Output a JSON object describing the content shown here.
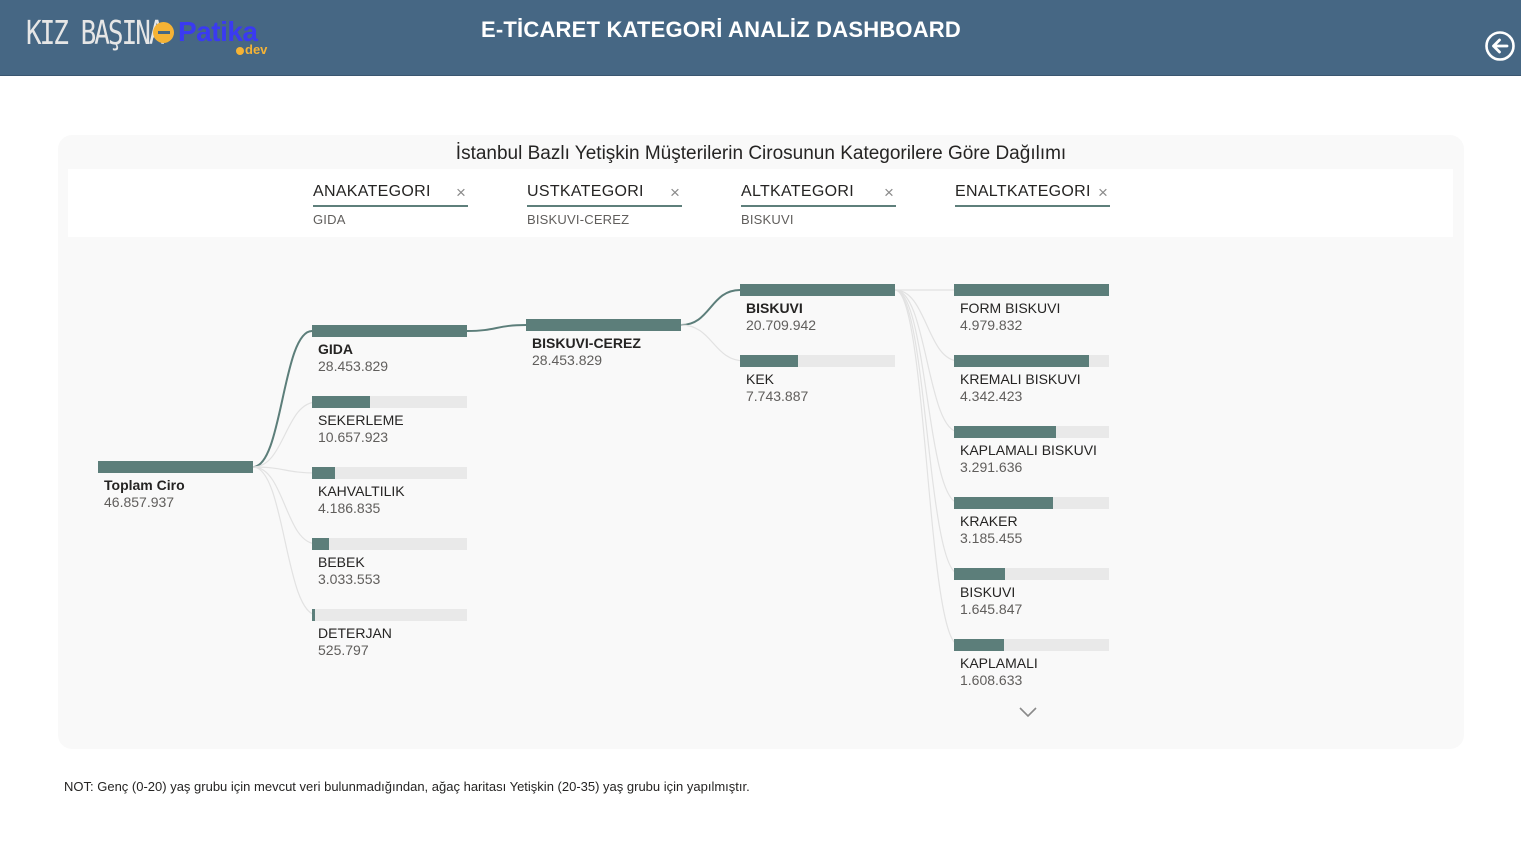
{
  "header": {
    "logo_kiz": "KIZ BAŞINA",
    "logo_patika": "Patika",
    "logo_dev": "dev",
    "title": "E-TİCARET KATEGORİ ANALİZ DASHBOARD",
    "back_icon": "back-arrow-icon"
  },
  "panel": {
    "title": "İstanbul Bazlı Yetişkin Müşterilerin Cirosunun Kategorilere Göre Dağılımı",
    "filters": [
      {
        "label": "ANAKATEGORI",
        "value": "GIDA"
      },
      {
        "label": "USTKATEGORI",
        "value": "BISKUVI-CEREZ"
      },
      {
        "label": "ALTKATEGORI",
        "value": "BISKUVI"
      },
      {
        "label": "ENALTKATEGORI",
        "value": ""
      }
    ],
    "clear_symbol": "×"
  },
  "chart_data": {
    "type": "decomposition-tree",
    "root": {
      "name": "Toplam Ciro",
      "value": 46857937,
      "label": "46.857.937"
    },
    "levels": [
      {
        "field": "ANAKATEGORI",
        "selected": "GIDA",
        "nodes": [
          {
            "name": "GIDA",
            "value": 28453829,
            "label": "28.453.829"
          },
          {
            "name": "SEKERLEME",
            "value": 10657923,
            "label": "10.657.923"
          },
          {
            "name": "KAHVALTILIK",
            "value": 4186835,
            "label": "4.186.835"
          },
          {
            "name": "BEBEK",
            "value": 3033553,
            "label": "3.033.553"
          },
          {
            "name": "DETERJAN",
            "value": 525797,
            "label": "525.797"
          }
        ]
      },
      {
        "field": "USTKATEGORI",
        "selected": "BISKUVI-CEREZ",
        "nodes": [
          {
            "name": "BISKUVI-CEREZ",
            "value": 28453829,
            "label": "28.453.829"
          }
        ]
      },
      {
        "field": "ALTKATEGORI",
        "selected": "BISKUVI",
        "nodes": [
          {
            "name": "BISKUVI",
            "value": 20709942,
            "label": "20.709.942"
          },
          {
            "name": "KEK",
            "value": 7743887,
            "label": "7.743.887"
          }
        ]
      },
      {
        "field": "ENALTKATEGORI",
        "selected": "",
        "nodes": [
          {
            "name": "FORM BISKUVI",
            "value": 4979832,
            "label": "4.979.832"
          },
          {
            "name": "KREMALI BISKUVI",
            "value": 4342423,
            "label": "4.342.423"
          },
          {
            "name": "KAPLAMALI BISKUVI",
            "value": 3291636,
            "label": "3.291.636"
          },
          {
            "name": "KRAKER",
            "value": 3185455,
            "label": "3.185.455"
          },
          {
            "name": "BISKUVI",
            "value": 1645847,
            "label": "1.645.847"
          },
          {
            "name": "KAPLAMALI",
            "value": 1608633,
            "label": "1.608.633"
          }
        ]
      }
    ],
    "colors": {
      "bar": "#5c7e7a",
      "track": "#e9e9e9",
      "link": "#5c7e7a",
      "link_faint": "#e2e2e2"
    }
  },
  "note": "NOT: Genç (0-20) yaş grubu için mevcut veri bulunmadığından, ağaç haritası Yetişkin (20-35) yaş grubu için yapılmıştır."
}
